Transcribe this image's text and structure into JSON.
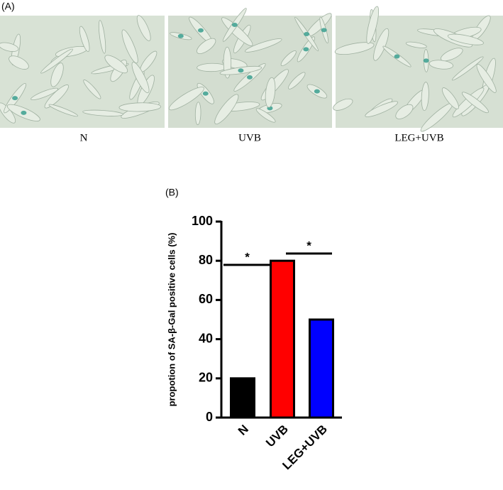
{
  "panel_a": {
    "label": "(A)",
    "captions": [
      "N",
      "UVB",
      "LEG+UVB"
    ]
  },
  "chart_data": {
    "type": "bar",
    "label": "(B)",
    "ylabel": "propotion of  SA-β-Gal positive cells (%)",
    "categories": [
      "N",
      "UVB",
      "LEG+UVB"
    ],
    "values": [
      20,
      80,
      50
    ],
    "colors": [
      "#000000",
      "#ff0000",
      "#0000ff"
    ],
    "ylim": [
      0,
      100
    ],
    "yticks": [
      0,
      20,
      40,
      60,
      80,
      100
    ],
    "annotations": [
      "*",
      "*"
    ]
  }
}
